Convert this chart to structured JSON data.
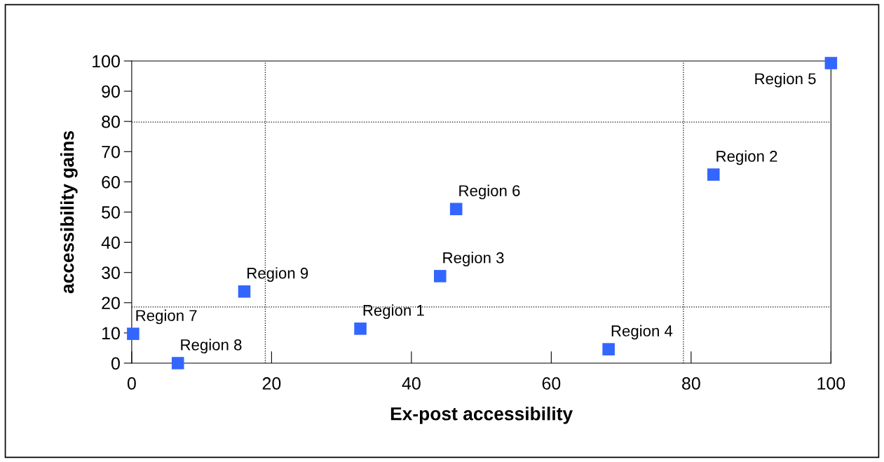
{
  "chart_data": {
    "type": "scatter",
    "xlabel": "Ex-post accessibility",
    "ylabel": "accessibility gains",
    "x": [
      32.7,
      83.2,
      44.1,
      68.2,
      100,
      46.4,
      0.2,
      6.6,
      16.1
    ],
    "series": [
      {
        "color": "#3366ff",
        "values": [
          11.4,
          62.4,
          28.8,
          4.6,
          99.3,
          51,
          9.7,
          0,
          23.7
        ]
      }
    ],
    "marker": "square",
    "grid": false,
    "legend": false,
    "xlim": [
      0,
      100
    ],
    "ylim": [
      0,
      100
    ],
    "xticks": [
      0,
      20,
      40,
      60,
      80,
      100
    ],
    "yticks": [
      0,
      10,
      20,
      30,
      40,
      50,
      60,
      70,
      80,
      90,
      100
    ],
    "ref_lines": [
      {
        "axis": "x",
        "value": 19.1,
        "line_style": "dotted",
        "color": "#000000"
      },
      {
        "axis": "x",
        "value": 78.9,
        "line_style": "dotted",
        "color": "#000000"
      },
      {
        "axis": "y",
        "value": 79.8,
        "line_style": "dotted",
        "color": "#000000"
      },
      {
        "axis": "y",
        "value": 18.6,
        "line_style": "dotted",
        "color": "#000000"
      }
    ],
    "annotations": [
      {
        "text": "Region 1",
        "x": 32.7,
        "y": 11.4
      },
      {
        "text": "Region 2",
        "x": 83.2,
        "y": 62.4
      },
      {
        "text": "Region 3",
        "x": 44.1,
        "y": 28.8
      },
      {
        "text": "Region 4",
        "x": 68.2,
        "y": 4.6
      },
      {
        "text": "Region 5",
        "x": 100,
        "y": 99.3
      },
      {
        "text": "Region 6",
        "x": 46.4,
        "y": 51
      },
      {
        "text": "Region 7",
        "x": 0.2,
        "y": 9.7
      },
      {
        "text": "Region 8",
        "x": 6.6,
        "y": 0
      },
      {
        "text": "Region 9",
        "x": 16.1,
        "y": 23.7
      }
    ]
  }
}
